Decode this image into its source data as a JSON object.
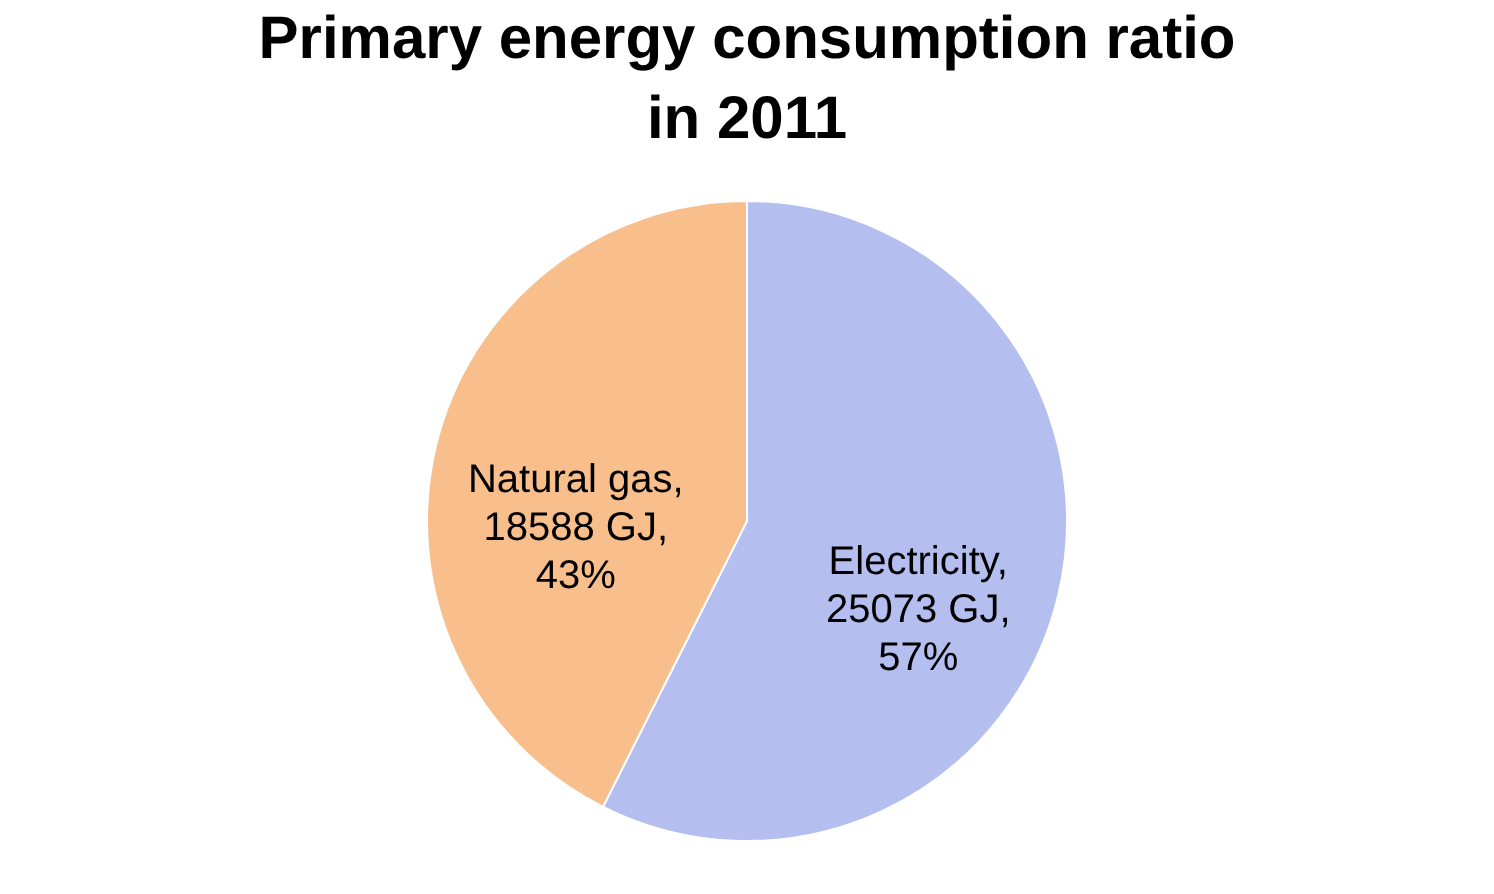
{
  "chart_data": {
    "type": "pie",
    "title": "Primary energy consumption ratio\nin 2011",
    "categories": [
      "Electricity",
      "Natural gas"
    ],
    "values": [
      25073,
      18588
    ],
    "colors": [
      "#b4bff0",
      "#f8bf8c"
    ],
    "value_labels": [
      ", 25073 GJ, 57%",
      ", 18588 GJ, 43%"
    ],
    "legend": false
  }
}
